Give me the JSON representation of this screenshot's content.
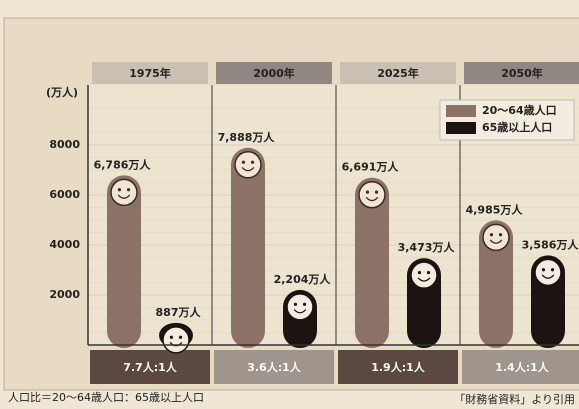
{
  "chart_data": {
    "type": "bar",
    "y_label": "(万人)",
    "categories": [
      "1975年",
      "2000年",
      "2025年",
      "2050年"
    ],
    "series": [
      {
        "name": "20〜64歳人口",
        "color": "#8c7166",
        "values": [
          6786,
          7888,
          6691,
          4985
        ],
        "value_labels": [
          "6,786万人",
          "7,888万人",
          "6,691万人",
          "4,985万人"
        ]
      },
      {
        "name": "65歳以上人口",
        "color": "#1c1212",
        "values": [
          887,
          2204,
          3473,
          3586
        ],
        "value_labels": [
          "887万人",
          "2,204万人",
          "3,473万人",
          "3,586万人"
        ]
      }
    ],
    "ratio_labels": [
      "7.7人:1人",
      "3.6人:1人",
      "1.9人:1人",
      "1.4人:1人"
    ],
    "footnote": "人口比＝20〜64歳人口：65歳以上人口",
    "source": "「財務省資料」より引用",
    "ylim": [
      0,
      10000
    ],
    "yticks": [
      2000,
      4000,
      6000,
      8000
    ],
    "grid": true,
    "legend": "top-right"
  }
}
